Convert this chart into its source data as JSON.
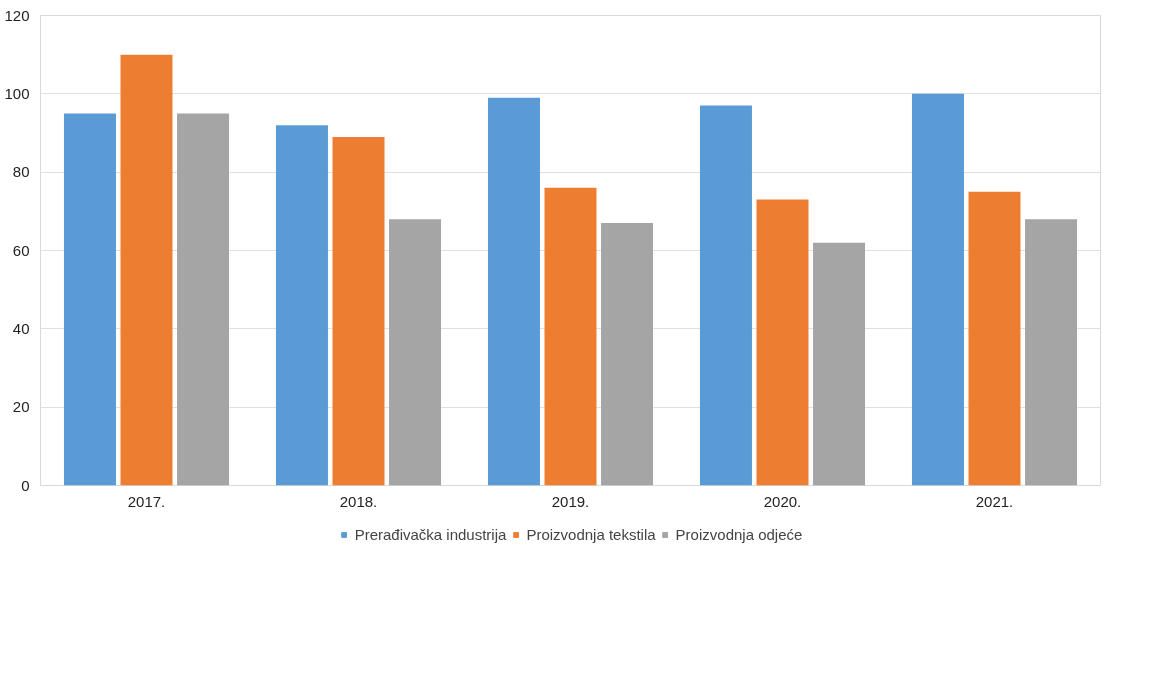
{
  "chart_data": {
    "type": "bar",
    "categories": [
      "2017.",
      "2018.",
      "2019.",
      "2020.",
      "2021."
    ],
    "series": [
      {
        "name": "Prerađivačka industrija",
        "color": "#5b9bd5",
        "values": [
          95,
          92,
          99,
          97,
          100
        ]
      },
      {
        "name": "Proizvodnja tekstila",
        "color": "#ed7d31",
        "values": [
          110,
          89,
          76,
          73,
          75
        ]
      },
      {
        "name": "Proizvodnja odjeće",
        "color": "#a5a5a5",
        "values": [
          95,
          68,
          67,
          62,
          68
        ]
      }
    ],
    "ylim": [
      0,
      120
    ],
    "yticks": [
      0,
      20,
      40,
      60,
      80,
      100,
      120
    ],
    "grid": "y",
    "legend": "bottom"
  }
}
